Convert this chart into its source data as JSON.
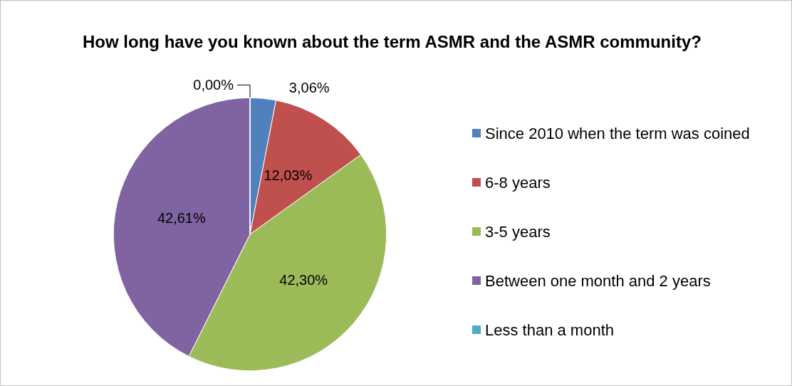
{
  "chart_data": {
    "type": "pie",
    "title": "How long have you known about the term ASMR and the ASMR community?",
    "categories": [
      "Since 2010 when the term was coined",
      "6-8 years",
      "3-5 years",
      "Between one month and 2 years",
      "Less than a month"
    ],
    "values": [
      3.06,
      12.03,
      42.3,
      42.61,
      0.0
    ],
    "colors": [
      "#4f81bd",
      "#c0504d",
      "#9bbb59",
      "#8064a2",
      "#4bacc6"
    ],
    "value_labels": [
      "3,06%",
      "12,03%",
      "42,30%",
      "42,61%",
      "0,00%"
    ],
    "legend": "right"
  }
}
